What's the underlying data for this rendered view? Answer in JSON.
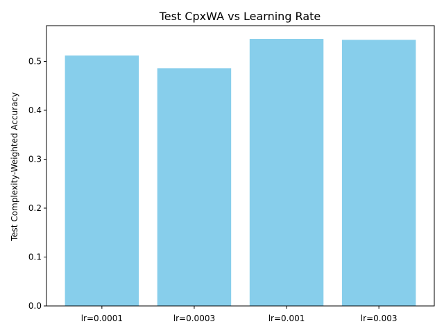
{
  "chart_data": {
    "type": "bar",
    "title": "Test CpxWA vs Learning Rate",
    "xlabel": "",
    "ylabel": "Test Complexity-Weighted Accuracy",
    "categories": [
      "lr=0.0001",
      "lr=0.0003",
      "lr=0.001",
      "lr=0.003"
    ],
    "values": [
      0.512,
      0.486,
      0.546,
      0.544
    ],
    "ylim": [
      0,
      0.573
    ],
    "yticks": [
      0.0,
      0.1,
      0.2,
      0.3,
      0.4,
      0.5
    ],
    "ytick_labels": [
      "0.0",
      "0.1",
      "0.2",
      "0.3",
      "0.4",
      "0.5"
    ],
    "bar_color": "#87ceeb",
    "grid": false,
    "legend": null
  }
}
